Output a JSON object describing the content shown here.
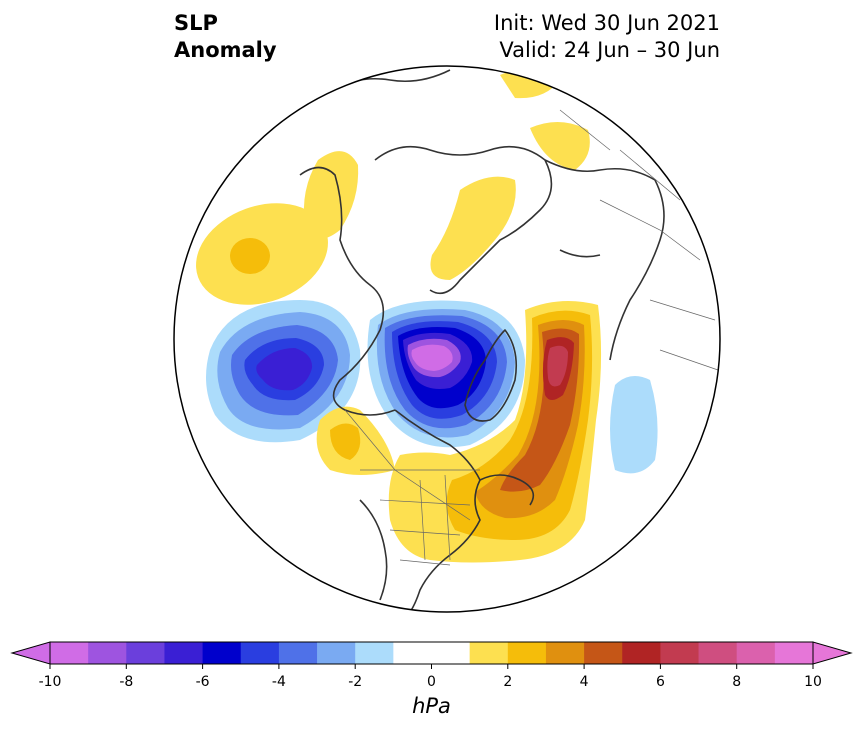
{
  "title": {
    "left_line1": "SLP",
    "left_line2": "Anomaly",
    "right_line1": "Init: Wed 30 Jun 2021",
    "right_line2": "Valid: 24 Jun – 30 Jun"
  },
  "colorbar": {
    "unit": "hPa",
    "min": -10,
    "max": 10,
    "step": 1,
    "extend": "both",
    "ticks": [
      -10,
      -8,
      -6,
      -4,
      -2,
      0,
      2,
      4,
      6,
      8,
      10
    ],
    "tick_labels": [
      "-10",
      "-8",
      "-6",
      "-4",
      "-2",
      "0",
      "2",
      "4",
      "6",
      "8",
      "10"
    ],
    "colors": [
      "#d06ce6",
      "#9e54e0",
      "#6b3fdc",
      "#3a1fd4",
      "#0000cc",
      "#2a3ee0",
      "#4f71e8",
      "#7aaaf2",
      "#acdcfb",
      "#ffffff",
      "#ffffff",
      "#fde050",
      "#f5bd0a",
      "#e0900f",
      "#c55617",
      "#b02424",
      "#c23b50",
      "#cf4e80",
      "#db61ad",
      "#e676d8"
    ]
  },
  "map": {
    "projection": "north-polar-stereographic",
    "field": "sea level pressure anomaly",
    "ocean_color": "#ffffff",
    "coastline_color": "#333333"
  }
}
